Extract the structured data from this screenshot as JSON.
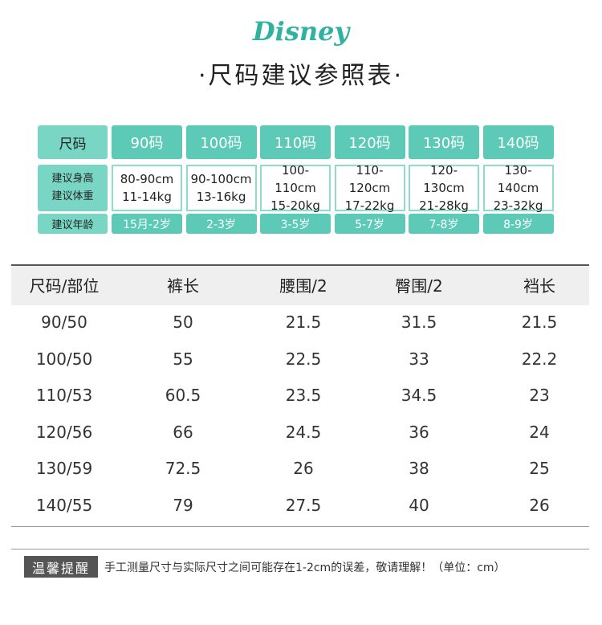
{
  "logo": "Disney",
  "title": "·尺码建议参照表·",
  "size_guide": {
    "row_labels": [
      "尺码",
      "建议身高",
      "建议体重",
      "建议年龄"
    ],
    "columns": [
      {
        "size": "90码",
        "height": "80-90cm",
        "weight": "11-14kg",
        "age": "15月-2岁"
      },
      {
        "size": "100码",
        "height": "90-100cm",
        "weight": "13-16kg",
        "age": "2-3岁"
      },
      {
        "size": "110码",
        "height": "100-110cm",
        "weight": "15-20kg",
        "age": "3-5岁"
      },
      {
        "size": "120码",
        "height": "110-120cm",
        "weight": "17-22kg",
        "age": "5-7岁"
      },
      {
        "size": "130码",
        "height": "120-130cm",
        "weight": "21-28kg",
        "age": "7-8岁"
      },
      {
        "size": "140码",
        "height": "130-140cm",
        "weight": "23-32kg",
        "age": "8-9岁"
      }
    ]
  },
  "measurements": {
    "headers": [
      "尺码/部位",
      "裤长",
      "腰围/2",
      "臀围/2",
      "裆长"
    ],
    "rows": [
      [
        "90/50",
        "50",
        "21.5",
        "31.5",
        "21.5"
      ],
      [
        "100/50",
        "55",
        "22.5",
        "33",
        "22.2"
      ],
      [
        "110/53",
        "60.5",
        "23.5",
        "34.5",
        "23"
      ],
      [
        "120/56",
        "66",
        "24.5",
        "36",
        "24"
      ],
      [
        "130/59",
        "72.5",
        "26",
        "38",
        "25"
      ],
      [
        "140/55",
        "79",
        "27.5",
        "40",
        "26"
      ]
    ]
  },
  "notice": {
    "badge": "温馨提醒",
    "text": "手工测量尺寸与实际尺寸之间可能存在1-2cm的误差，敬请理解！（单位：cm）"
  }
}
